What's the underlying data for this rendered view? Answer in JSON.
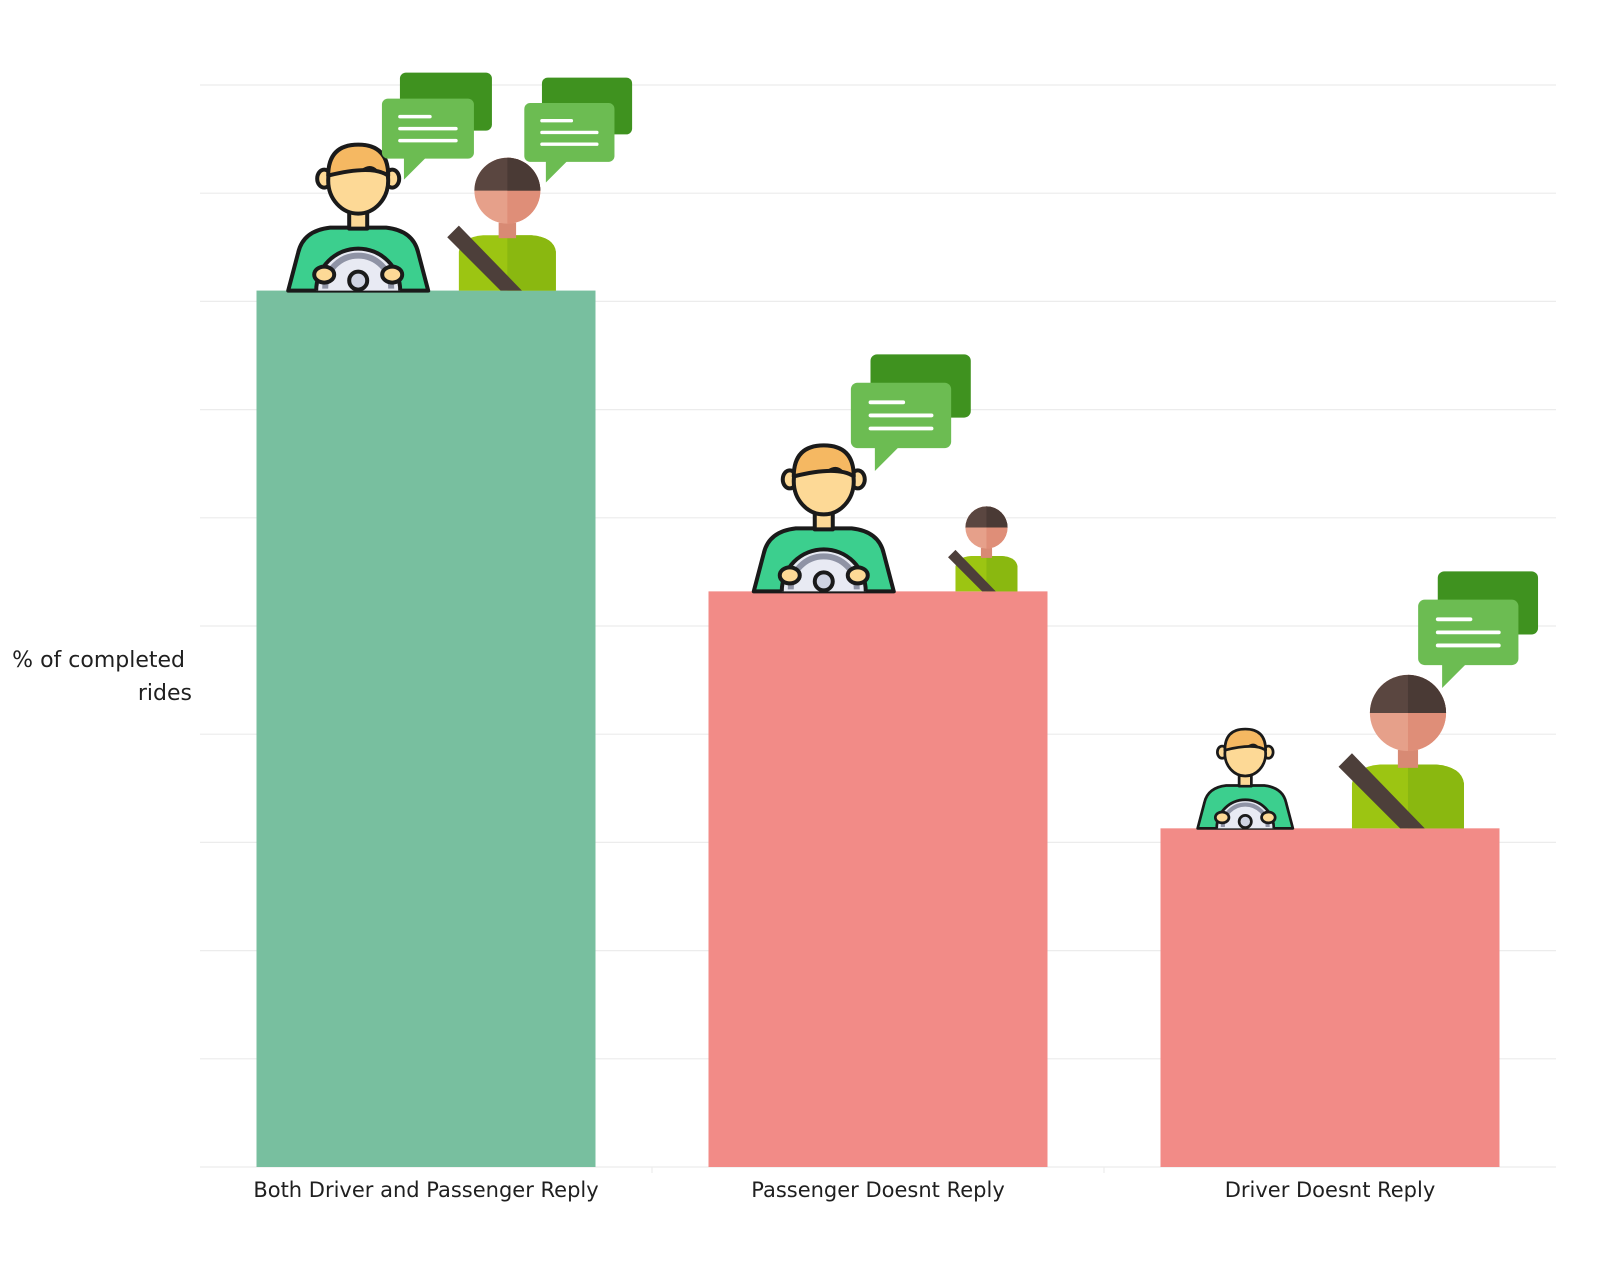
{
  "chart_data": {
    "type": "bar",
    "title": "",
    "xlabel": "",
    "ylabel_lines": [
      "% of completed",
      "rides"
    ],
    "categories": [
      "Both Driver and Passenger Reply",
      "Passenger Doesnt Reply",
      "Driver Doesnt Reply"
    ],
    "values": [
      81,
      53.2,
      31.3
    ],
    "ylim": [
      0,
      100
    ],
    "y_gridlines": [
      10,
      20,
      30,
      40,
      50,
      60,
      70,
      80,
      90,
      100
    ],
    "grid": true,
    "y_tick_labels_shown": false,
    "bar_colors": [
      "#78bf9f",
      "#f28b87",
      "#f28b87"
    ],
    "annotations": [
      {
        "category": "Both Driver and Passenger Reply",
        "icons": [
          "driver-icon",
          "passenger-icon",
          "driver-chat-bubble-icon",
          "passenger-chat-bubble-icon"
        ]
      },
      {
        "category": "Passenger Doesnt Reply",
        "icons": [
          "driver-icon",
          "passenger-icon",
          "driver-chat-bubble-icon"
        ]
      },
      {
        "category": "Driver Doesnt Reply",
        "icons": [
          "driver-icon",
          "passenger-icon",
          "passenger-chat-bubble-icon"
        ]
      }
    ]
  },
  "colors": {
    "grid": "#ececec",
    "skin": "#fdd996",
    "skin_outline": "#1a1a1a",
    "driver_shirt": "#3ccf8e",
    "passenger_face": "#e6a08a",
    "passenger_hair": "#5a4640",
    "passenger_shirt": "#9cc512",
    "seatbelt": "#4d3f3a",
    "bubble_back": "#3f921f",
    "bubble_front": "#6cbc52"
  }
}
